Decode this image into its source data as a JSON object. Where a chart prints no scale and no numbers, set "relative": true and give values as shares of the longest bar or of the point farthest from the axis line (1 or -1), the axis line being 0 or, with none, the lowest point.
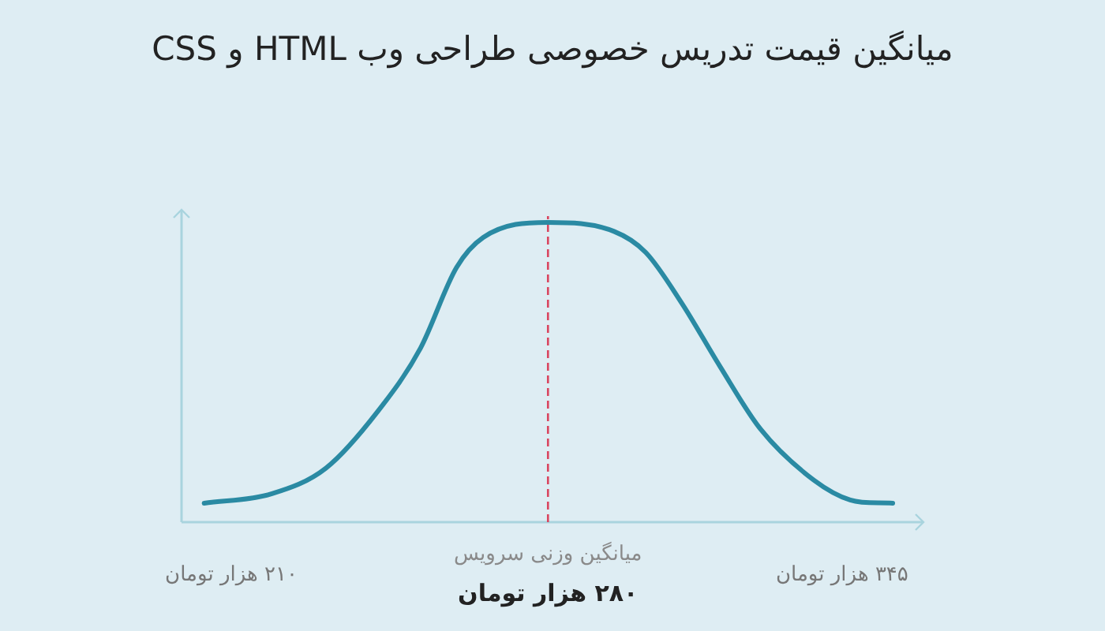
{
  "chart_data": {
    "type": "line",
    "title": "میانگین قیمت تدریس خصوصی طراحی وب HTML و CSS",
    "relative": true,
    "xlim": [
      199,
      363
    ],
    "xticks": [
      {
        "value": 210,
        "label": "۲۱۰ هزار تومان"
      },
      {
        "value": 345,
        "label": "۳۴۵ هزار تومان"
      }
    ],
    "x": [
      204.0,
      219.0,
      230.9,
      242.4,
      251.8,
      259.8,
      265.7,
      280,
      294.6,
      301.6,
      309.6,
      318.0,
      327.0,
      338.8,
      346.8,
      356.2
    ],
    "series": [
      {
        "color": "#2a8aa3",
        "values": [
          0.063,
          0.095,
          0.18,
          0.37,
          0.58,
          0.85,
          0.95,
          1,
          0.97,
          0.9,
          0.73,
          0.52,
          0.31,
          0.14,
          0.074,
          0.063
        ]
      }
    ],
    "ref_lines": [
      {
        "axis": "x",
        "value": 280,
        "label": "میانگین وزنی سرویس",
        "color": "#d9455f",
        "line_style": "dashed"
      }
    ],
    "annotations": [
      "۲۸۰ هزار تومان"
    ],
    "grid": false,
    "marker": "none",
    "line_style": "solid"
  }
}
